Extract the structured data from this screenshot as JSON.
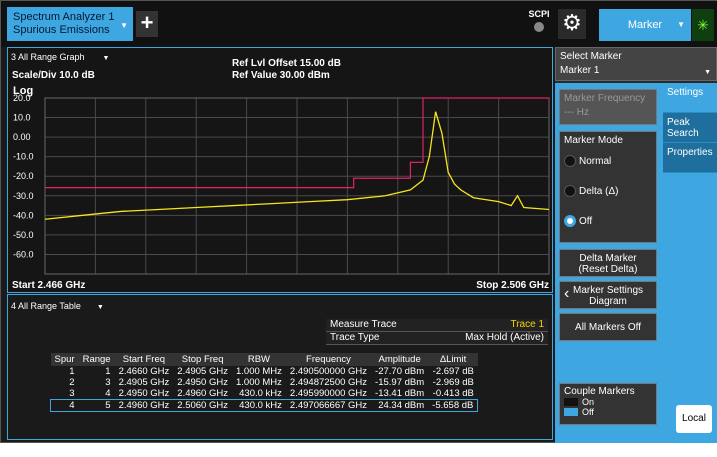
{
  "topbar": {
    "mode_line1": "Spectrum Analyzer 1",
    "mode_line2": "Spurious Emissions",
    "add_label": "+",
    "scpi_label": "SCPI",
    "menu_label": "Marker"
  },
  "graph": {
    "title": "3 All Range Graph",
    "scale": "Scale/Div 10.0 dB",
    "ref_offset": "Ref Lvl Offset 15.00 dB",
    "ref_value": "Ref Value 30.00 dBm",
    "log_label": "Log",
    "start": "Start 2.466 GHz",
    "stop": "Stop 2.506 GHz"
  },
  "chart_data": {
    "type": "line",
    "x_unit": "GHz",
    "y_unit": "dBm",
    "xlim": [
      2.466,
      2.506
    ],
    "ylim": [
      -70,
      30
    ],
    "y_ticks": [
      "20.0",
      "10.0",
      "0.00",
      "-10.0",
      "-20.0",
      "-30.0",
      "-40.0",
      "-50.0",
      "-60.0"
    ],
    "y_tick_values": [
      20,
      10,
      0,
      -10,
      -20,
      -30,
      -40,
      -50,
      -60
    ],
    "grid": true,
    "series": [
      {
        "color": "#f5e61a",
        "x": [
          2.466,
          2.469,
          2.472,
          2.475,
          2.478,
          2.481,
          2.484,
          2.487,
          2.49,
          2.493,
          2.495,
          2.496,
          2.4965,
          2.497,
          2.4975,
          2.498,
          2.4985,
          2.499,
          2.5,
          2.502,
          2.503,
          2.5035,
          2.504,
          2.506
        ],
        "y": [
          -42,
          -40,
          -38,
          -37,
          -36,
          -35,
          -34,
          -33,
          -32,
          -30,
          -27,
          -22,
          -10,
          13,
          2,
          -18,
          -24,
          -27,
          -31,
          -33,
          -35,
          -30,
          -36,
          -37
        ]
      }
    ],
    "limit_line": {
      "color": "#e0226a",
      "x": [
        2.466,
        2.4905,
        2.4905,
        2.495,
        2.495,
        2.496,
        2.496,
        2.506
      ],
      "y": [
        -25.84,
        -25.84,
        -21.04,
        -21.04,
        -12.93,
        -12.93,
        30,
        30
      ]
    }
  },
  "table_area": {
    "title": "4 All Range Table",
    "measure_trace_label": "Measure Trace",
    "measure_trace_value": "Trace 1",
    "trace_type_label": "Trace Type",
    "trace_type_value": "Max Hold (Active)",
    "headers": [
      "Spur",
      "Range",
      "Start Freq",
      "Stop Freq",
      "RBW",
      "Frequency",
      "Amplitude",
      "ΔLimit"
    ],
    "rows": [
      [
        "1",
        "1",
        "2.4660 GHz",
        "2.4905 GHz",
        "1.000 MHz",
        "2.490500000 GHz",
        "-27.70 dBm",
        "-2.697 dB"
      ],
      [
        "2",
        "3",
        "2.4905 GHz",
        "2.4950 GHz",
        "1.000 MHz",
        "2.494872500 GHz",
        "-15.97 dBm",
        "-2.969 dB"
      ],
      [
        "3",
        "4",
        "2.4950 GHz",
        "2.4960 GHz",
        "430.0 kHz",
        "2.495990000 GHz",
        "-13.41 dBm",
        "-0.413 dB"
      ],
      [
        "4",
        "5",
        "2.4960 GHz",
        "2.5060 GHz",
        "430.0 kHz",
        "2.497066667 GHz",
        "24.34 dBm",
        "-5.658 dB"
      ]
    ]
  },
  "right_panel": {
    "select_marker_label": "Select Marker",
    "select_marker_value": "Marker 1",
    "tabs": [
      "Settings",
      "Peak Search",
      "Properties"
    ],
    "marker_freq_label": "Marker Frequency",
    "marker_freq_value": "--- Hz",
    "marker_mode_label": "Marker Mode",
    "mode_normal": "Normal",
    "mode_delta": "Delta (Δ)",
    "mode_off": "Off",
    "delta_marker_line1": "Delta Marker",
    "delta_marker_line2": "(Reset Delta)",
    "marker_settings_line1": "Marker Settings",
    "marker_settings_line2": "Diagram",
    "all_markers_off": "All Markers Off",
    "couple_markers_label": "Couple Markers",
    "couple_on": "On",
    "couple_off": "Off",
    "local_label": "Local"
  }
}
